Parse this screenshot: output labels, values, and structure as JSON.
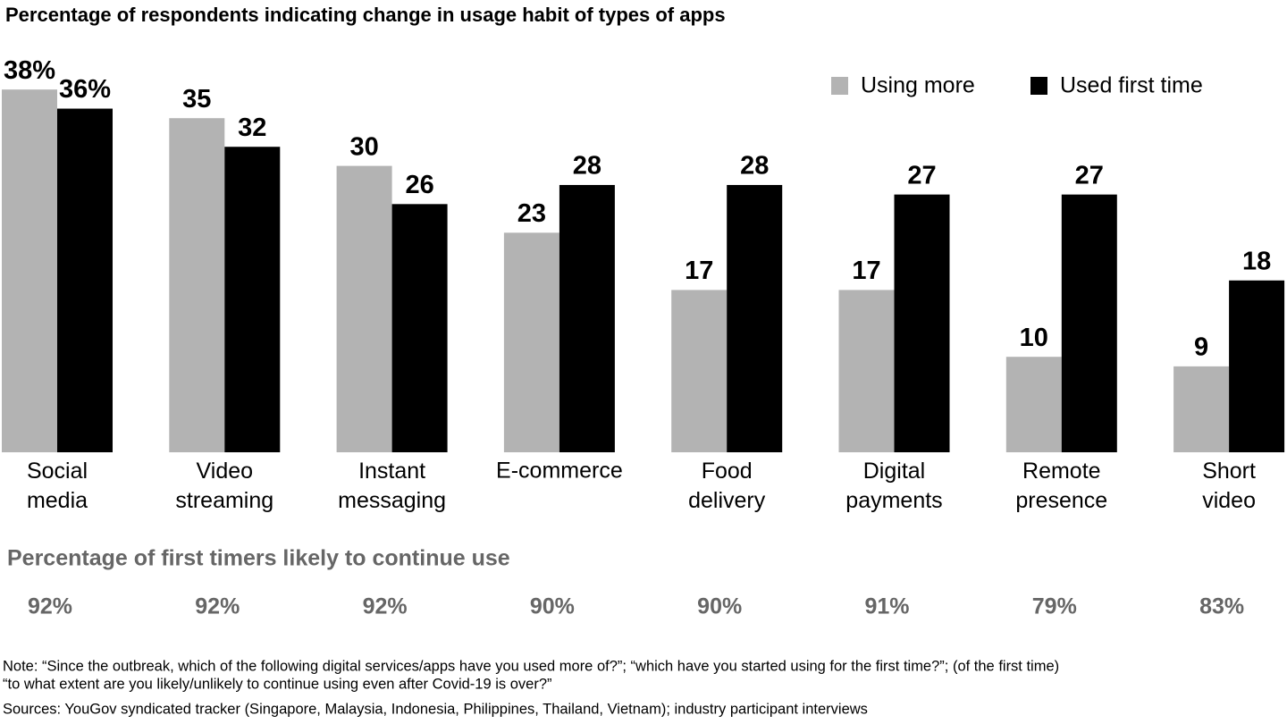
{
  "chart_data": {
    "type": "bar",
    "title": "Percentage of respondents indicating change in usage habit of types of apps",
    "categories": [
      "Social media",
      "Video streaming",
      "Instant messaging",
      "E-commerce",
      "Food delivery",
      "Digital payments",
      "Remote presence",
      "Short video"
    ],
    "series": [
      {
        "name": "Using more",
        "color": "#b3b3b3",
        "values": [
          38,
          35,
          30,
          23,
          17,
          17,
          10,
          9
        ],
        "value_labels": [
          "38%",
          "35",
          "30",
          "23",
          "17",
          "17",
          "10",
          "9"
        ]
      },
      {
        "name": "Used first time",
        "color": "#000000",
        "values": [
          36,
          32,
          26,
          28,
          28,
          27,
          27,
          18
        ],
        "value_labels": [
          "36%",
          "32",
          "26",
          "28",
          "28",
          "27",
          "27",
          "18"
        ]
      }
    ],
    "continue_use": {
      "title": "Percentage of first timers likely to continue use",
      "values": [
        92,
        92,
        92,
        90,
        90,
        91,
        79,
        83
      ],
      "value_labels": [
        "92%",
        "92%",
        "92%",
        "90%",
        "90%",
        "91%",
        "79%",
        "83%"
      ]
    },
    "notes": [
      "Note: “Since the outbreak, which of the following digital services/apps have you used more of?”; “which have you started using for the first time?”; (of the first time)",
      "“to what extent are you likely/unlikely to continue using even after Covid-19 is over?”",
      "Sources: YouGov syndicated tracker (Singapore, Malaysia, Indonesia, Philippines, Thailand, Vietnam); industry participant interviews"
    ]
  }
}
